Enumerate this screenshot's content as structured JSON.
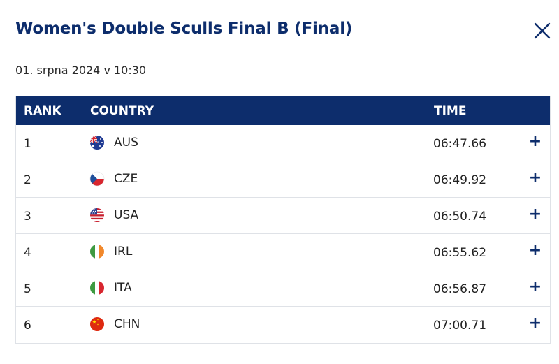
{
  "title": "Women's Double Sculls Final B (Final)",
  "date": "01. srpna 2024 v 10:30",
  "table": {
    "headers": {
      "rank": "RANK",
      "country": "COUNTRY",
      "time": "TIME"
    },
    "rows": [
      {
        "rank": "1",
        "country": "AUS",
        "flag": "australia-flag-icon",
        "time": "06:47.66",
        "expand": "+"
      },
      {
        "rank": "2",
        "country": "CZE",
        "flag": "czech-flag-icon",
        "time": "06:49.92",
        "expand": "+"
      },
      {
        "rank": "3",
        "country": "USA",
        "flag": "usa-flag-icon",
        "time": "06:50.74",
        "expand": "+"
      },
      {
        "rank": "4",
        "country": "IRL",
        "flag": "ireland-flag-icon",
        "time": "06:55.62",
        "expand": "+"
      },
      {
        "rank": "5",
        "country": "ITA",
        "flag": "italy-flag-icon",
        "time": "06:56.87",
        "expand": "+"
      },
      {
        "rank": "6",
        "country": "CHN",
        "flag": "china-flag-icon",
        "time": "07:00.71",
        "expand": "+"
      }
    ]
  },
  "colors": {
    "accent": "#0d2d6c",
    "border": "#dfe2e7"
  }
}
